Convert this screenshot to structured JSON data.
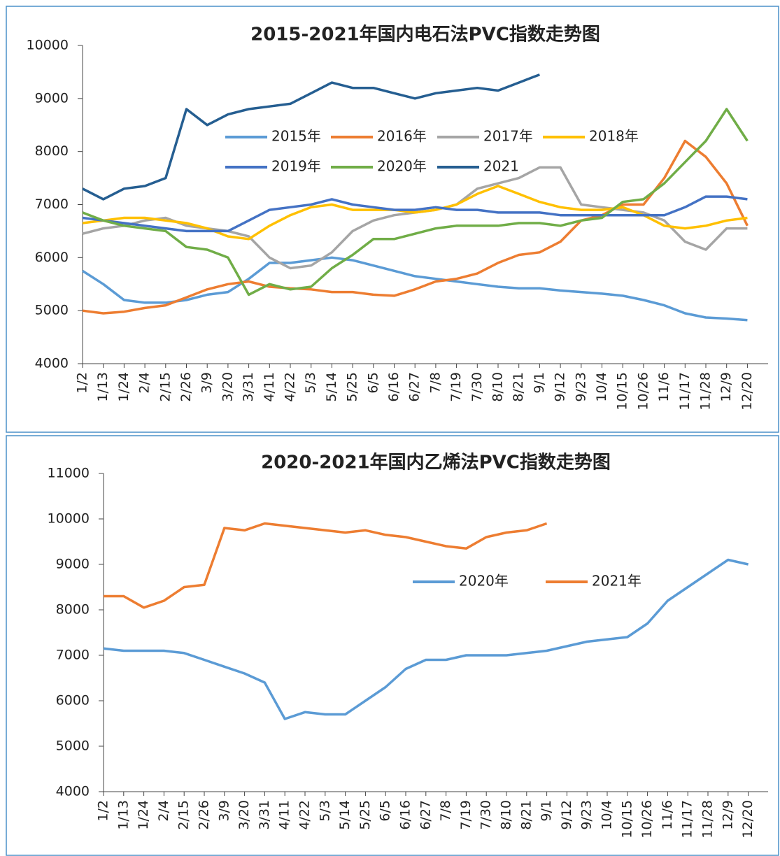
{
  "chart_data": [
    {
      "type": "line",
      "title": "2015-2021年国内电石法PVC指数走势图",
      "categories": [
        "1/2",
        "1/13",
        "1/24",
        "2/4",
        "2/15",
        "2/26",
        "3/9",
        "3/20",
        "3/31",
        "4/11",
        "4/22",
        "5/3",
        "5/14",
        "5/25",
        "6/5",
        "6/16",
        "6/27",
        "7/8",
        "7/19",
        "7/30",
        "8/10",
        "8/21",
        "9/1",
        "9/12",
        "9/23",
        "10/4",
        "10/15",
        "10/26",
        "11/6",
        "11/17",
        "11/28",
        "12/9",
        "12/20"
      ],
      "ylim": [
        4000,
        10000
      ],
      "yticks": [
        4000,
        5000,
        6000,
        7000,
        8000,
        9000,
        10000
      ],
      "series": [
        {
          "name": "2015年",
          "color": "#5b9bd5",
          "values": [
            5750,
            5500,
            5200,
            5150,
            5150,
            5200,
            5300,
            5350,
            5600,
            5900,
            5900,
            5950,
            6000,
            5950,
            5850,
            5750,
            5650,
            5600,
            5550,
            5500,
            5450,
            5420,
            5420,
            5380,
            5350,
            5320,
            5280,
            5200,
            5100,
            4950,
            4870,
            4850,
            4820
          ]
        },
        {
          "name": "2016年",
          "color": "#ed7d31",
          "values": [
            5000,
            4950,
            4980,
            5050,
            5100,
            5250,
            5400,
            5500,
            5550,
            5450,
            5420,
            5400,
            5350,
            5350,
            5300,
            5280,
            5400,
            5550,
            5600,
            5700,
            5900,
            6050,
            6100,
            6300,
            6700,
            6800,
            7000,
            7000,
            7500,
            8200,
            7900,
            7400,
            6600
          ]
        },
        {
          "name": "2017年",
          "color": "#a5a5a5",
          "values": [
            6450,
            6550,
            6600,
            6700,
            6750,
            6600,
            6550,
            6500,
            6400,
            6000,
            5800,
            5850,
            6100,
            6500,
            6700,
            6800,
            6850,
            6900,
            7000,
            7300,
            7400,
            7500,
            7700,
            7700,
            7000,
            6950,
            6900,
            6850,
            6700,
            6300,
            6150,
            6550,
            6550
          ]
        },
        {
          "name": "2018年",
          "color": "#ffc000",
          "values": [
            6650,
            6700,
            6750,
            6750,
            6700,
            6650,
            6550,
            6400,
            6350,
            6600,
            6800,
            6950,
            7000,
            6900,
            6900,
            6900,
            6850,
            6900,
            7000,
            7200,
            7350,
            7200,
            7050,
            6950,
            6900,
            6900,
            6950,
            6800,
            6600,
            6550,
            6600,
            6700,
            6750
          ]
        },
        {
          "name": "2019年",
          "color": "#4472c4",
          "values": [
            6750,
            6700,
            6650,
            6600,
            6550,
            6500,
            6500,
            6500,
            6700,
            6900,
            6950,
            7000,
            7100,
            7000,
            6950,
            6900,
            6900,
            6950,
            6900,
            6900,
            6850,
            6850,
            6850,
            6800,
            6800,
            6800,
            6800,
            6800,
            6800,
            6950,
            7150,
            7150,
            7100
          ]
        },
        {
          "name": "2020年",
          "color": "#70ad47",
          "values": [
            6850,
            6700,
            6600,
            6550,
            6500,
            6200,
            6150,
            6000,
            5300,
            5500,
            5400,
            5450,
            5800,
            6050,
            6350,
            6350,
            6450,
            6550,
            6600,
            6600,
            6600,
            6650,
            6650,
            6600,
            6700,
            6750,
            7050,
            7100,
            7400,
            7800,
            8200,
            8800,
            8200
          ]
        },
        {
          "name": "2021",
          "color": "#255e91",
          "values": [
            7300,
            7100,
            7300,
            7350,
            7500,
            8800,
            8500,
            8700,
            8800,
            8850,
            8900,
            9100,
            9300,
            9200,
            9200,
            9100,
            9000,
            9100,
            9150,
            9200,
            9150,
            9300,
            9450,
            null,
            null,
            null,
            null,
            null,
            null,
            null,
            null,
            null,
            null
          ]
        }
      ]
    },
    {
      "type": "line",
      "title": "2020-2021年国内乙烯法PVC指数走势图",
      "categories": [
        "1/2",
        "1/13",
        "1/24",
        "2/4",
        "2/15",
        "2/26",
        "3/9",
        "3/20",
        "3/31",
        "4/11",
        "4/22",
        "5/3",
        "5/14",
        "5/25",
        "6/5",
        "6/16",
        "6/27",
        "7/8",
        "7/19",
        "7/30",
        "8/10",
        "8/21",
        "9/1",
        "9/12",
        "9/23",
        "10/4",
        "10/15",
        "10/26",
        "11/6",
        "11/17",
        "11/28",
        "12/9",
        "12/20"
      ],
      "ylim": [
        4000,
        11000
      ],
      "yticks": [
        4000,
        5000,
        6000,
        7000,
        8000,
        9000,
        10000,
        11000
      ],
      "series": [
        {
          "name": "2020年",
          "color": "#5b9bd5",
          "values": [
            7150,
            7100,
            7100,
            7100,
            7050,
            6900,
            6750,
            6600,
            6400,
            5600,
            5750,
            5700,
            5700,
            6000,
            6300,
            6700,
            6900,
            6900,
            7000,
            7000,
            7000,
            7050,
            7100,
            7200,
            7300,
            7350,
            7400,
            7700,
            8200,
            8500,
            8800,
            9100,
            9000
          ]
        },
        {
          "name": "2021年",
          "color": "#ed7d31",
          "values": [
            8300,
            8300,
            8050,
            8200,
            8500,
            8550,
            9800,
            9750,
            9900,
            9850,
            9800,
            9750,
            9700,
            9750,
            9650,
            9600,
            9500,
            9400,
            9350,
            9600,
            9700,
            9750,
            9900,
            null,
            null,
            null,
            null,
            null,
            null,
            null,
            null,
            null,
            null
          ]
        }
      ]
    }
  ]
}
